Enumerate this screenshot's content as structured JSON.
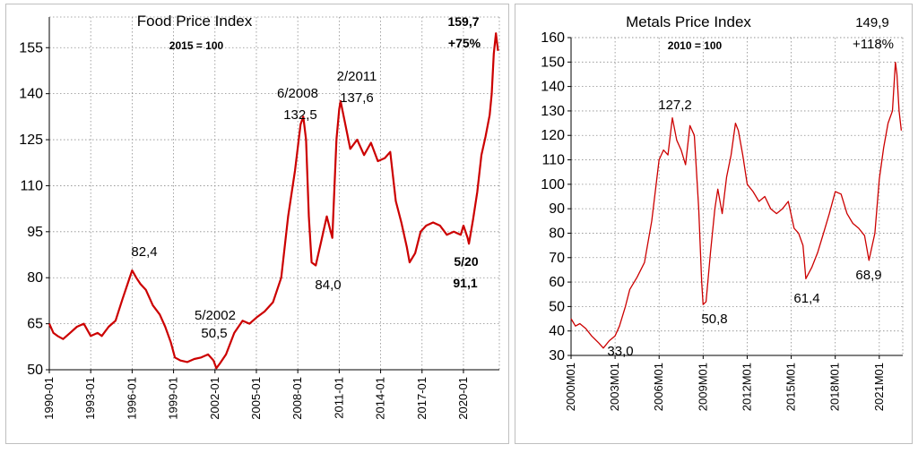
{
  "colors": {
    "series": "#cc0000",
    "grid": "#8c8c8c",
    "axis": "#000000"
  },
  "chart_data": [
    {
      "type": "line",
      "title": "Food Price Index",
      "subtitle": "2015 = 100",
      "ylim": [
        50,
        165
      ],
      "yticks": [
        50,
        65,
        80,
        95,
        110,
        125,
        140,
        155
      ],
      "xticks": [
        {
          "label": "1990-01",
          "x": 1990
        },
        {
          "label": "1993-01",
          "x": 1993
        },
        {
          "label": "1996-01",
          "x": 1996
        },
        {
          "label": "1999-01",
          "x": 1999
        },
        {
          "label": "2002-01",
          "x": 2002
        },
        {
          "label": "2005-01",
          "x": 2005
        },
        {
          "label": "2008-01",
          "x": 2008
        },
        {
          "label": "2011-01",
          "x": 2011
        },
        {
          "label": "2014-01",
          "x": 2014
        },
        {
          "label": "2017-01",
          "x": 2017
        },
        {
          "label": "2020-01",
          "x": 2020
        }
      ],
      "xlim": [
        1990,
        2022.6
      ],
      "grid": true,
      "series": [
        {
          "x": [
            1990.0,
            1990.3,
            1990.6,
            1991.0,
            1991.5,
            1992.0,
            1992.5,
            1993.0,
            1993.5,
            1993.8,
            1994.3,
            1994.8,
            1995.3,
            1995.6,
            1996.0,
            1996.3,
            1996.6,
            1997.0,
            1997.5,
            1998.0,
            1998.4,
            1998.8,
            1999.1,
            1999.5,
            2000.0,
            2000.5,
            2001.0,
            2001.5,
            2001.9,
            2002.1,
            2002.35,
            2002.8,
            2003.4,
            2004.0,
            2004.5,
            2005.0,
            2005.6,
            2006.2,
            2006.8,
            2007.3,
            2007.8,
            2008.2,
            2008.4,
            2008.6,
            2008.8,
            2009.0,
            2009.3,
            2009.7,
            2010.1,
            2010.5,
            2010.8,
            2011.0,
            2011.1,
            2011.4,
            2011.8,
            2012.3,
            2012.8,
            2013.3,
            2013.8,
            2014.3,
            2014.7,
            2015.1,
            2015.5,
            2015.9,
            2016.1,
            2016.5,
            2016.9,
            2017.3,
            2017.8,
            2018.3,
            2018.8,
            2019.3,
            2019.8,
            2020.0,
            2020.3,
            2020.4,
            2020.7,
            2021.0,
            2021.3,
            2021.6,
            2021.9,
            2022.05,
            2022.2,
            2022.35,
            2022.5
          ],
          "y": [
            65,
            62,
            61,
            60,
            62,
            64,
            65,
            61,
            62,
            61,
            64,
            66,
            73,
            77,
            82.4,
            80,
            78,
            76,
            71,
            68,
            64,
            59,
            54,
            53,
            52.5,
            53.5,
            54,
            55,
            53,
            50.5,
            52,
            55,
            62,
            66,
            65,
            67,
            69,
            72,
            80,
            100,
            115,
            130,
            132.5,
            125,
            100,
            85,
            84,
            92,
            100,
            93,
            125,
            135,
            137.6,
            131,
            122,
            125,
            120,
            124,
            118,
            119,
            121,
            105,
            98,
            90,
            85,
            88,
            95,
            97,
            98,
            97,
            94,
            95,
            94,
            97,
            93,
            91.1,
            99,
            108,
            120,
            126,
            133,
            140,
            153,
            159.7,
            154
          ]
        }
      ],
      "annotations": [
        {
          "label": "82,4",
          "x": 1996.0,
          "y": 82.4
        },
        {
          "label": "5/2002",
          "x": 2002.35,
          "y": 50.5
        },
        {
          "label": "50,5",
          "x": 2002.35,
          "y": 50.5
        },
        {
          "label": "6/2008",
          "x": 2008.4,
          "y": 132.5
        },
        {
          "label": "132,5",
          "x": 2008.4,
          "y": 132.5
        },
        {
          "label": "84,0",
          "x": 2009.3,
          "y": 84.0
        },
        {
          "label": "2/2011",
          "x": 2011.1,
          "y": 137.6
        },
        {
          "label": "137,6",
          "x": 2011.1,
          "y": 137.6
        },
        {
          "label": "5/20",
          "x": 2020.4,
          "y": 91.1
        },
        {
          "label": "91,1",
          "x": 2020.4,
          "y": 91.1
        },
        {
          "label": "159,7",
          "x": 2022.35,
          "y": 159.7
        },
        {
          "label": "+75%",
          "x": 2022.35,
          "y": 159.7
        }
      ]
    },
    {
      "type": "line",
      "title": "Metals Price Index",
      "subtitle": "2010 = 100",
      "ylim": [
        30,
        160
      ],
      "yticks": [
        30,
        40,
        50,
        60,
        70,
        80,
        90,
        100,
        110,
        120,
        130,
        140,
        150,
        160
      ],
      "xticks": [
        {
          "label": "2000M01",
          "x": 2000
        },
        {
          "label": "2003M01",
          "x": 2003
        },
        {
          "label": "2006M01",
          "x": 2006
        },
        {
          "label": "2009M01",
          "x": 2009
        },
        {
          "label": "2012M01",
          "x": 2012
        },
        {
          "label": "2015M01",
          "x": 2015
        },
        {
          "label": "2018M01",
          "x": 2018
        },
        {
          "label": "2021M01",
          "x": 2021
        }
      ],
      "xlim": [
        2000,
        2022.6
      ],
      "grid": true,
      "series": [
        {
          "x": [
            2000.0,
            2000.3,
            2000.6,
            2001.0,
            2001.4,
            2001.9,
            2002.2,
            2002.6,
            2003.0,
            2003.3,
            2003.7,
            2004.0,
            2004.5,
            2005.0,
            2005.5,
            2006.0,
            2006.3,
            2006.6,
            2006.9,
            2007.2,
            2007.5,
            2007.8,
            2008.1,
            2008.4,
            2008.7,
            2008.9,
            2009.0,
            2009.2,
            2009.5,
            2009.8,
            2010.0,
            2010.3,
            2010.6,
            2010.9,
            2011.2,
            2011.4,
            2011.7,
            2012.0,
            2012.4,
            2012.8,
            2013.2,
            2013.6,
            2014.0,
            2014.4,
            2014.8,
            2015.2,
            2015.5,
            2015.8,
            2016.0,
            2016.4,
            2016.8,
            2017.2,
            2017.6,
            2018.0,
            2018.4,
            2018.8,
            2019.2,
            2019.6,
            2020.0,
            2020.3,
            2020.7,
            2021.0,
            2021.3,
            2021.6,
            2021.9,
            2022.1,
            2022.2,
            2022.35,
            2022.5
          ],
          "y": [
            45,
            42,
            43,
            41,
            38,
            35,
            33,
            36,
            38,
            42,
            50,
            57,
            62,
            68,
            85,
            110,
            114,
            112,
            127.2,
            118,
            114,
            108,
            124,
            120,
            90,
            60,
            50.8,
            52,
            72,
            90,
            98,
            88,
            103,
            112,
            125,
            122,
            112,
            100,
            97,
            93,
            95,
            90,
            88,
            90,
            93,
            82,
            80,
            75,
            61.4,
            66,
            72,
            80,
            88,
            97,
            96,
            88,
            84,
            82,
            79,
            68.9,
            80,
            102,
            115,
            125,
            130,
            149.9,
            145,
            130,
            122
          ]
        }
      ],
      "annotations": [
        {
          "label": "33,0",
          "x": 2003.0,
          "y": 33.0
        },
        {
          "label": "127,2",
          "x": 2006.9,
          "y": 127.2
        },
        {
          "label": "50,8",
          "x": 2009.0,
          "y": 50.8
        },
        {
          "label": "61,4",
          "x": 2016.0,
          "y": 61.4
        },
        {
          "label": "68,9",
          "x": 2020.3,
          "y": 68.9
        },
        {
          "label": "149,9",
          "x": 2022.1,
          "y": 149.9
        },
        {
          "label": "+118%",
          "x": 2022.1,
          "y": 149.9
        }
      ]
    }
  ]
}
